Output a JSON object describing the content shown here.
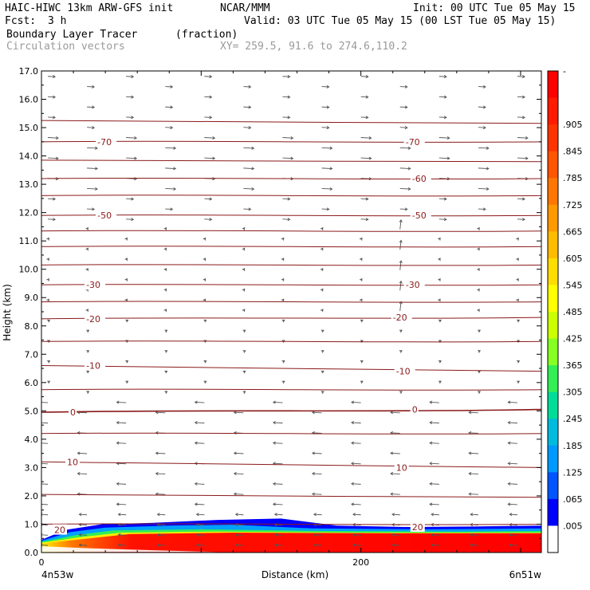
{
  "header": {
    "model": "HAIC-HIWC 13km ARW-GFS init",
    "org": "NCAR/MMM",
    "init": "Init: 00 UTC Tue 05 May 15",
    "fcst_label": "Fcst:",
    "fcst_value": "3 h",
    "valid": "Valid: 03 UTC Tue 05 May 15 (00 LST Tue 05 May 15)",
    "field": "Boundary Layer Tracer",
    "field_units": "(fraction)",
    "overlay": "Circulation vectors",
    "xy": "XY= 259.5, 91.6 to 274.6,110.2"
  },
  "chart_data": {
    "type": "heatmap",
    "ylabel": "Height (km)",
    "xlabel": "Distance (km)",
    "ylim": [
      0,
      17
    ],
    "xlim": [
      0,
      313
    ],
    "yticks": [
      "0.0",
      "1.0",
      "2.0",
      "3.0",
      "4.0",
      "5.0",
      "6.0",
      "7.0",
      "8.0",
      "9.0",
      "10.0",
      "11.0",
      "12.0",
      "13.0",
      "14.0",
      "15.0",
      "16.0",
      "17.0"
    ],
    "xticks": [
      {
        "value": 0,
        "label": "0"
      },
      {
        "value": 200,
        "label": "200"
      }
    ],
    "x_endpoints": {
      "left": "4n53w",
      "right": "6n51w"
    },
    "colorbar": {
      "labels": [
        "-",
        ".905",
        ".845",
        ".785",
        ".725",
        ".665",
        ".605",
        ".545",
        ".485",
        ".425",
        ".365",
        ".305",
        ".245",
        ".185",
        ".125",
        ".065",
        ".005"
      ],
      "colors": [
        "#ff0000",
        "#ff1a00",
        "#ff3300",
        "#ff5500",
        "#ff7700",
        "#ff9900",
        "#ffbb00",
        "#ffdd00",
        "#ffff00",
        "#ccff00",
        "#88ff22",
        "#33ee55",
        "#00dd99",
        "#00bbdd",
        "#0099ff",
        "#0055ff",
        "#0000ff",
        "#ffffff"
      ]
    },
    "contours": {
      "color": "#8b1a1a",
      "levels": [
        {
          "label": "-70",
          "y": [
            14.5,
            14.5
          ],
          "labels_at": [
            {
              "x": 35,
              "y": 14.5
            },
            {
              "x": 228,
              "y": 14.5
            }
          ]
        },
        {
          "label": "-60",
          "y": [
            13.2,
            13.2
          ],
          "labels_at": [
            {
              "x": 232,
              "y": 13.2
            }
          ]
        },
        {
          "label": "-50",
          "y": [
            11.9,
            11.9
          ],
          "labels_at": [
            {
              "x": 35,
              "y": 11.9
            },
            {
              "x": 232,
              "y": 11.9
            }
          ]
        },
        {
          "label": "-30",
          "y": [
            9.45,
            9.45
          ],
          "labels_at": [
            {
              "x": 28,
              "y": 9.45
            },
            {
              "x": 228,
              "y": 9.45
            }
          ]
        },
        {
          "label": "-20",
          "y": [
            8.25,
            8.3
          ],
          "labels_at": [
            {
              "x": 28,
              "y": 8.25
            },
            {
              "x": 220,
              "y": 8.3
            }
          ]
        },
        {
          "label": "-10",
          "y": [
            6.6,
            6.4
          ],
          "labels_at": [
            {
              "x": 28,
              "y": 6.6
            },
            {
              "x": 222,
              "y": 6.4
            }
          ]
        },
        {
          "label": "0",
          "y": [
            4.95,
            5.05
          ],
          "labels_at": [
            {
              "x": 18,
              "y": 4.95
            },
            {
              "x": 232,
              "y": 5.05
            }
          ]
        },
        {
          "label": "10",
          "y": [
            3.2,
            3.0
          ],
          "labels_at": [
            {
              "x": 16,
              "y": 3.2
            },
            {
              "x": 222,
              "y": 3.0
            }
          ]
        },
        {
          "label": "20",
          "y": [
            0.8,
            0.9
          ],
          "labels_at": [
            {
              "x": 8,
              "y": 0.8
            },
            {
              "x": 232,
              "y": 0.9
            }
          ]
        }
      ]
    }
  }
}
